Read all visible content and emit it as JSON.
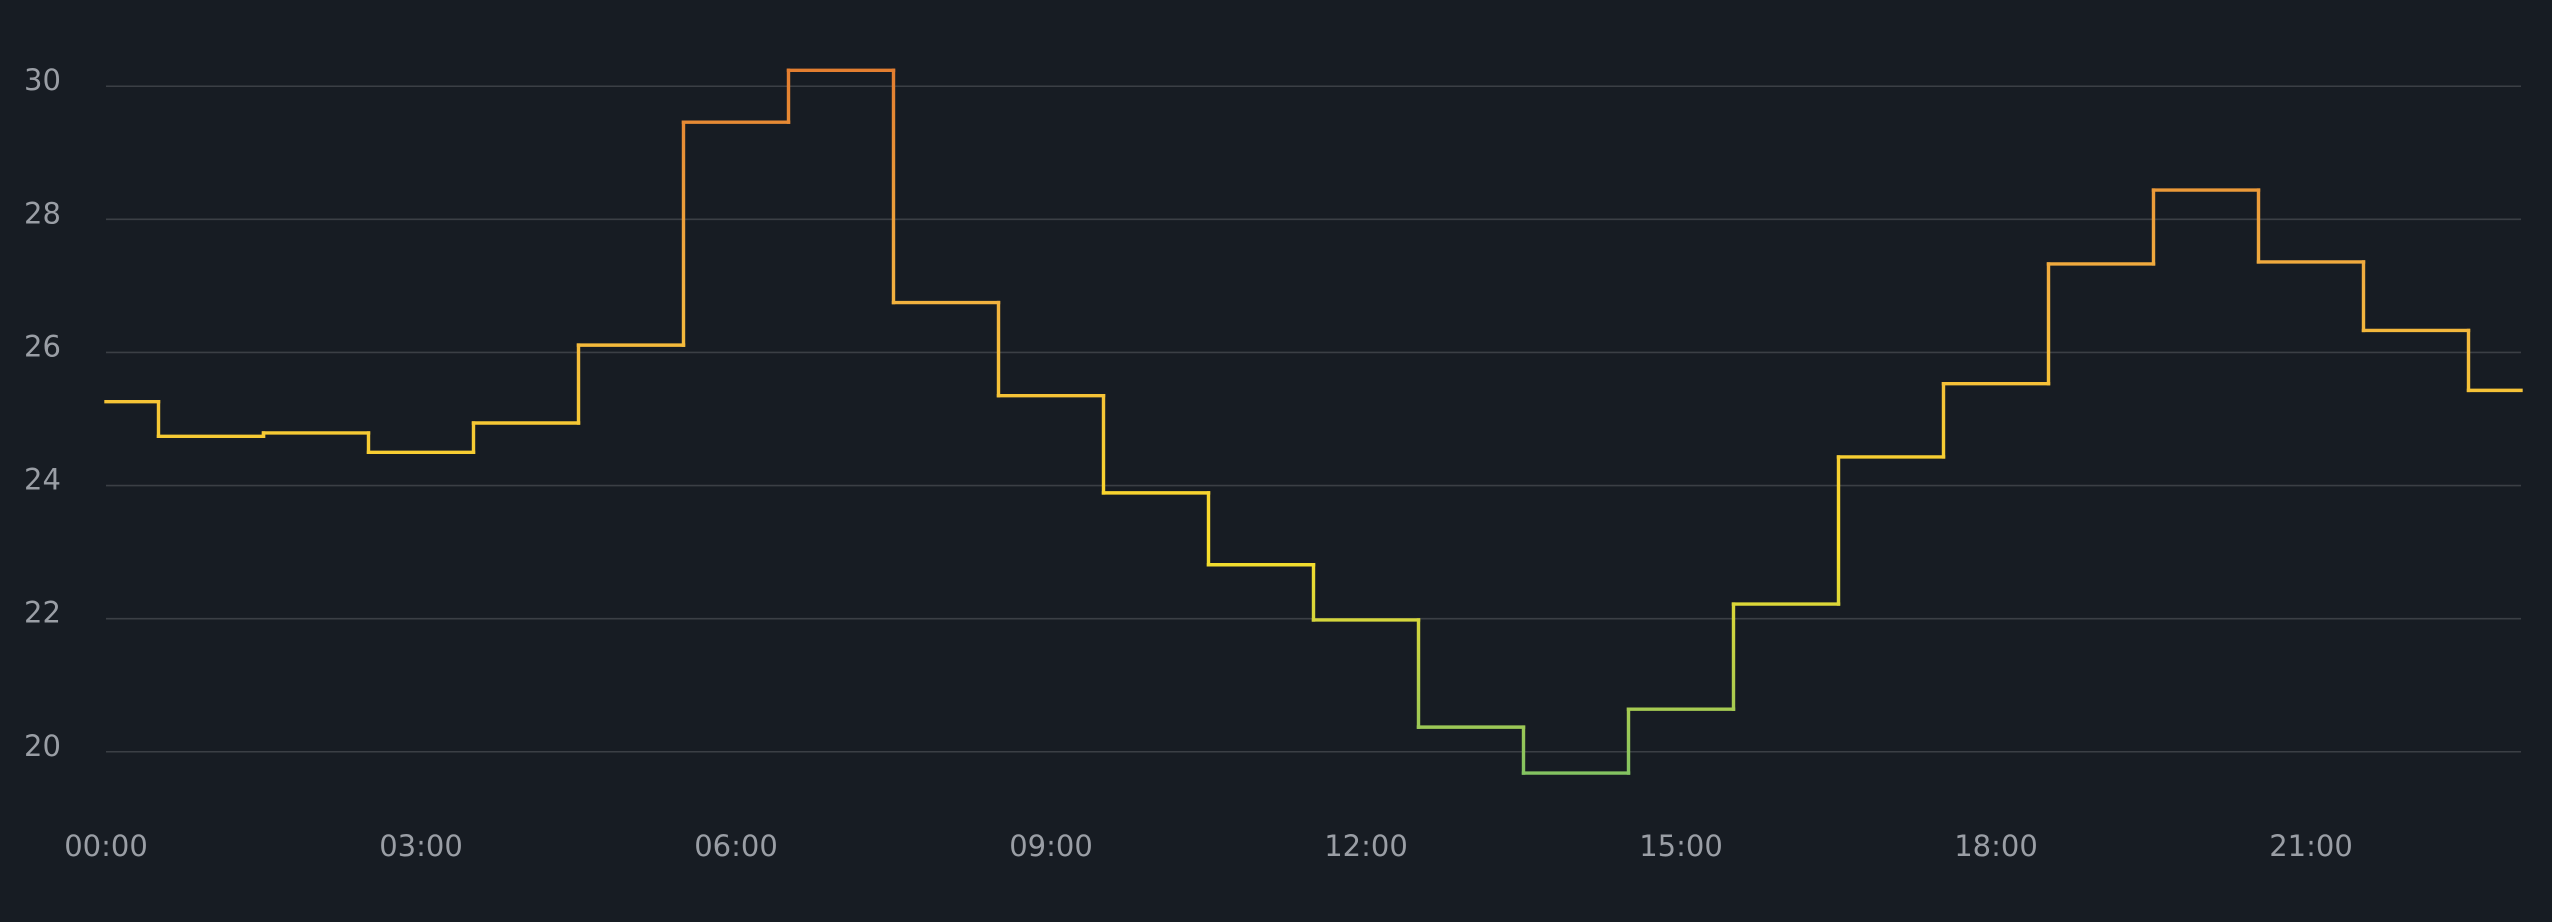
{
  "chart_data": {
    "type": "step",
    "x": [
      "00:00",
      "01:00",
      "02:00",
      "03:00",
      "04:00",
      "05:00",
      "06:00",
      "07:00",
      "08:00",
      "09:00",
      "10:00",
      "11:00",
      "12:00",
      "13:00",
      "14:00",
      "15:00",
      "16:00",
      "17:00",
      "18:00",
      "19:00",
      "20:00",
      "21:00",
      "22:00",
      "23:00"
    ],
    "xticks": [
      "00:00",
      "03:00",
      "06:00",
      "09:00",
      "12:00",
      "15:00",
      "18:00",
      "21:00"
    ],
    "series": [
      {
        "colors": [
          "#73bf69",
          "#fade2a",
          "#f2b040",
          "#e0752d"
        ],
        "values": [
          25.26,
          24.74,
          24.79,
          24.5,
          24.94,
          26.11,
          29.46,
          30.24,
          26.75,
          25.35,
          23.89,
          22.81,
          21.98,
          20.37,
          19.68,
          20.64,
          22.22,
          24.43,
          25.53,
          27.33,
          28.44,
          27.36,
          26.33,
          25.43
        ]
      }
    ],
    "ylim": [
      19.2,
      30.8
    ],
    "yticks": [
      20,
      22,
      24,
      26,
      28,
      30
    ],
    "grid": true
  }
}
